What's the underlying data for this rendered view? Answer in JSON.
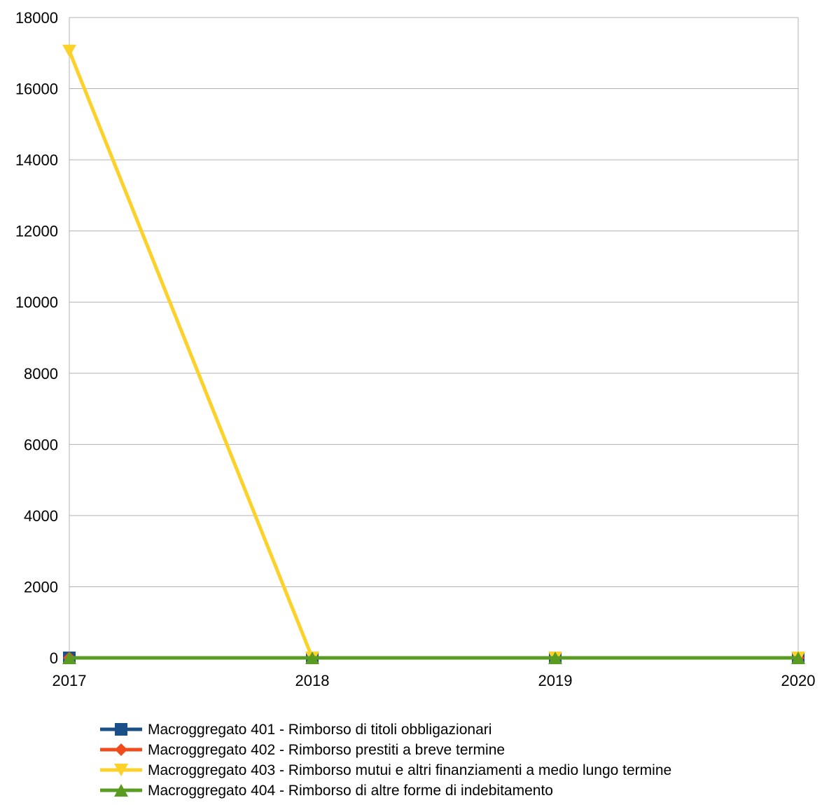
{
  "chart_data": {
    "type": "line",
    "title": "",
    "xlabel": "",
    "ylabel": "",
    "x": [
      "2017",
      "2018",
      "2019",
      "2020"
    ],
    "ylim": [
      0,
      18000
    ],
    "yticks": [
      0,
      2000,
      4000,
      6000,
      8000,
      10000,
      12000,
      14000,
      16000,
      18000
    ],
    "grid": "horizontal",
    "legend_position": "bottom",
    "series": [
      {
        "name": "Macroggregato 401 - Rimborso di titoli obbligazionari",
        "values": [
          0,
          0,
          0,
          0
        ],
        "color": "#1b4f8a",
        "marker": "square"
      },
      {
        "name": "Macroggregato 402 - Rimborso prestiti a breve termine",
        "values": [
          0,
          0,
          0,
          0
        ],
        "color": "#f04b1d",
        "marker": "diamond"
      },
      {
        "name": "Macroggregato 403 - Rimborso mutui e altri finanziamenti a medio lungo termine",
        "values": [
          17060,
          0,
          0,
          0
        ],
        "color": "#fcd12a",
        "marker": "triangle-down"
      },
      {
        "name": "Macroggregato 404 - Rimborso di altre forme di indebitamento",
        "values": [
          0,
          0,
          0,
          0
        ],
        "color": "#5a9c22",
        "marker": "triangle-up"
      }
    ]
  }
}
